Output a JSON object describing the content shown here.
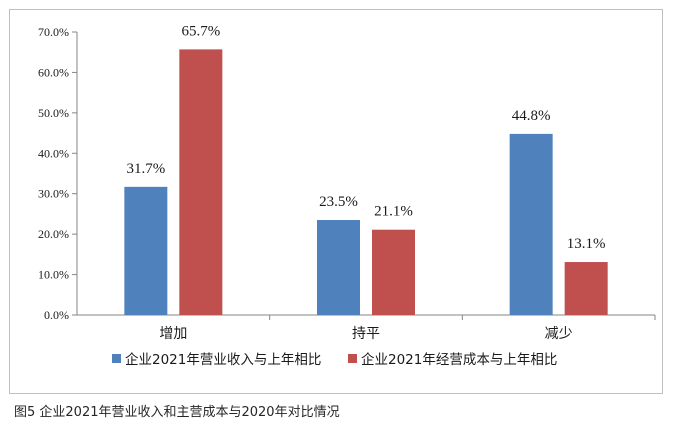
{
  "caption": "图5 企业2021年营业收入和主营成本与2020年对比情况",
  "colors": {
    "series1": "#4f81bd",
    "series2": "#c0504d",
    "axis": "#868686",
    "text": "#1a1a1a"
  },
  "chart_data": {
    "type": "bar",
    "categories": [
      "增加",
      "持平",
      "减少"
    ],
    "series": [
      {
        "name": "企业2021年营业收入与上年相比",
        "values": [
          31.7,
          23.5,
          44.8
        ],
        "labels": [
          "31.7%",
          "23.5%",
          "44.8%"
        ]
      },
      {
        "name": "企业2021年经营成本与上年相比",
        "values": [
          65.7,
          21.1,
          13.1
        ],
        "labels": [
          "65.7%",
          "21.1%",
          "13.1%"
        ]
      }
    ],
    "yticks": [
      "0.0%",
      "10.0%",
      "20.0%",
      "30.0%",
      "40.0%",
      "50.0%",
      "60.0%",
      "70.0%"
    ],
    "ylim": [
      0,
      70
    ],
    "grid": false,
    "legend": "bottom"
  }
}
